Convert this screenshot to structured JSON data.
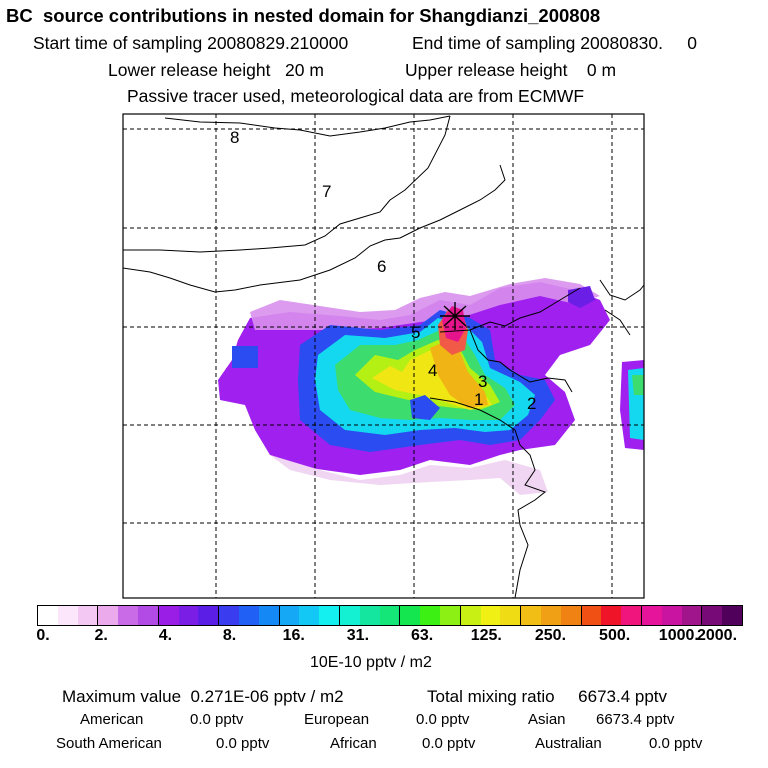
{
  "header": {
    "title": "BC  source contributions in nested domain for Shangdianzi_200808",
    "start_time": "Start time of sampling 20080829.210000",
    "end_time": "End time of sampling 20080830.     0",
    "lower_height": "Lower release height   20 m",
    "upper_height": "Upper release height    0 m",
    "tracer_note": "Passive tracer used, meteorological data are from ECMWF"
  },
  "map": {
    "region_labels": [
      "8",
      "7",
      "6",
      "5",
      "4",
      "3",
      "1",
      "2"
    ],
    "receptor_marker": "site-cross"
  },
  "colorbar": {
    "colors": [
      "#ffffff",
      "#fbe6fb",
      "#f3c8f3",
      "#ebaaeb",
      "#c96ae6",
      "#b24be6",
      "#9a1ee6",
      "#7a1ee6",
      "#5a1ee6",
      "#3a3cf0",
      "#2060f5",
      "#1488f5",
      "#14a8f5",
      "#14c8f5",
      "#14f0f0",
      "#14f0d2",
      "#14e6a0",
      "#14e678",
      "#14e650",
      "#3cf014",
      "#8cf014",
      "#c8f014",
      "#f0f014",
      "#f0dc14",
      "#f0be14",
      "#f0a014",
      "#f08214",
      "#f05014",
      "#f01428",
      "#f0147d",
      "#e6149b",
      "#c814a0",
      "#a0148c",
      "#780a78",
      "#50005a"
    ],
    "tick_labels": [
      "0.",
      "2.",
      "4.",
      "8.",
      "16.",
      "31.",
      "63.",
      "125.",
      "250.",
      "500.",
      "1000.",
      "2000."
    ],
    "units": "10E-10 pptv / m2"
  },
  "stats": {
    "max_value": "Maximum value  0.271E-06 pptv / m2",
    "total_mixing": "Total mixing ratio     6673.4 pptv",
    "american_label": "American",
    "american_value": "0.0 pptv",
    "european_label": "European",
    "european_value": "0.0 pptv",
    "asian_label": "Asian",
    "asian_value": "6673.4 pptv",
    "south_american_label": "South American",
    "south_american_value": "0.0 pptv",
    "african_label": "African",
    "african_value": "0.0 pptv",
    "australian_label": "Australian",
    "australian_value": "0.0 pptv"
  }
}
